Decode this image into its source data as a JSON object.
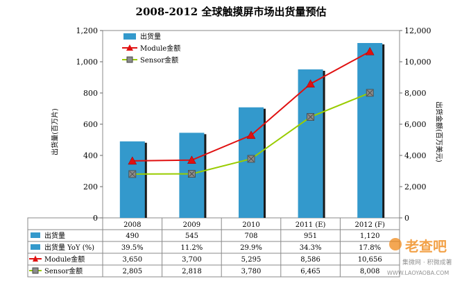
{
  "title": "2008-2012 全球触摸屏市场出货量预估",
  "chart_data": {
    "type": "bar",
    "categories": [
      "2008",
      "2009",
      "2010",
      "2011 (E)",
      "2012 (F)"
    ],
    "bar_series": {
      "name": "出货量",
      "values": [
        490,
        545,
        708,
        951,
        1120
      ],
      "color": "#3399cc"
    },
    "line_series": [
      {
        "name": "Module金额",
        "values": [
          3650,
          3700,
          5295,
          8586,
          10656
        ],
        "color": "#e01010",
        "marker": "triangle"
      },
      {
        "name": "Sensor金额",
        "values": [
          2805,
          2818,
          3780,
          6465,
          8008
        ],
        "color": "#99cc00",
        "marker": "square"
      }
    ],
    "ylabel_left": "出货量(百万片)",
    "ylabel_right": "出货金额(百万美元)",
    "ylim_left": [
      0,
      1200
    ],
    "ylim_right": [
      0,
      12000
    ],
    "yticks_left": [
      "0",
      "200",
      "400",
      "600",
      "800",
      "1,000",
      "1,200"
    ],
    "yticks_right": [
      "0",
      "2,000",
      "4,000",
      "6,000",
      "8,000",
      "10,000",
      "12,000"
    ],
    "legend_position": "top-left"
  },
  "table": {
    "headers": [
      "2008",
      "2009",
      "2010",
      "2011 (E)",
      "2012 (F)"
    ],
    "rows": [
      {
        "label": "出货量",
        "marker": "bar",
        "values": [
          "490",
          "545",
          "708",
          "951",
          "1,120"
        ]
      },
      {
        "label": "出货量 YoY (%)",
        "marker": "bar",
        "values": [
          "39.5%",
          "11.2%",
          "29.9%",
          "34.3%",
          "17.8%"
        ]
      },
      {
        "label": "Module金额",
        "marker": "triangle",
        "values": [
          "3,650",
          "3,700",
          "5,295",
          "8,586",
          "10,656"
        ]
      },
      {
        "label": "Sensor金额",
        "marker": "square",
        "values": [
          "2,805",
          "2,818",
          "3,780",
          "6,465",
          "8,008"
        ]
      }
    ]
  },
  "watermark": {
    "brand": "老查吧",
    "slogan": "集微网 · 积微成著",
    "url": "WWW.LAOYAOBA.COM"
  }
}
